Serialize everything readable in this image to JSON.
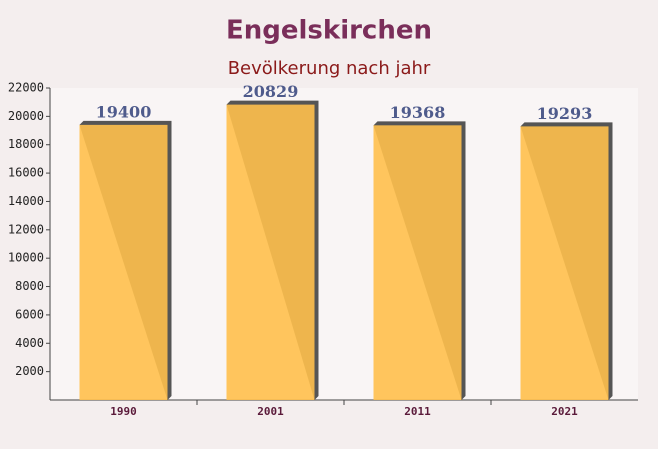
{
  "chart_data": {
    "type": "bar",
    "title": "Engelskirchen",
    "subtitle": "Bevölkerung nach jahr",
    "categories": [
      "1990",
      "2001",
      "2011",
      "2021"
    ],
    "values": [
      19400,
      20829,
      19368,
      19293
    ],
    "color": "#ffc04d",
    "ylim": [
      0,
      22000
    ],
    "yticks": [
      2000,
      4000,
      6000,
      8000,
      10000,
      12000,
      14000,
      16000,
      18000,
      20000,
      22000
    ]
  }
}
